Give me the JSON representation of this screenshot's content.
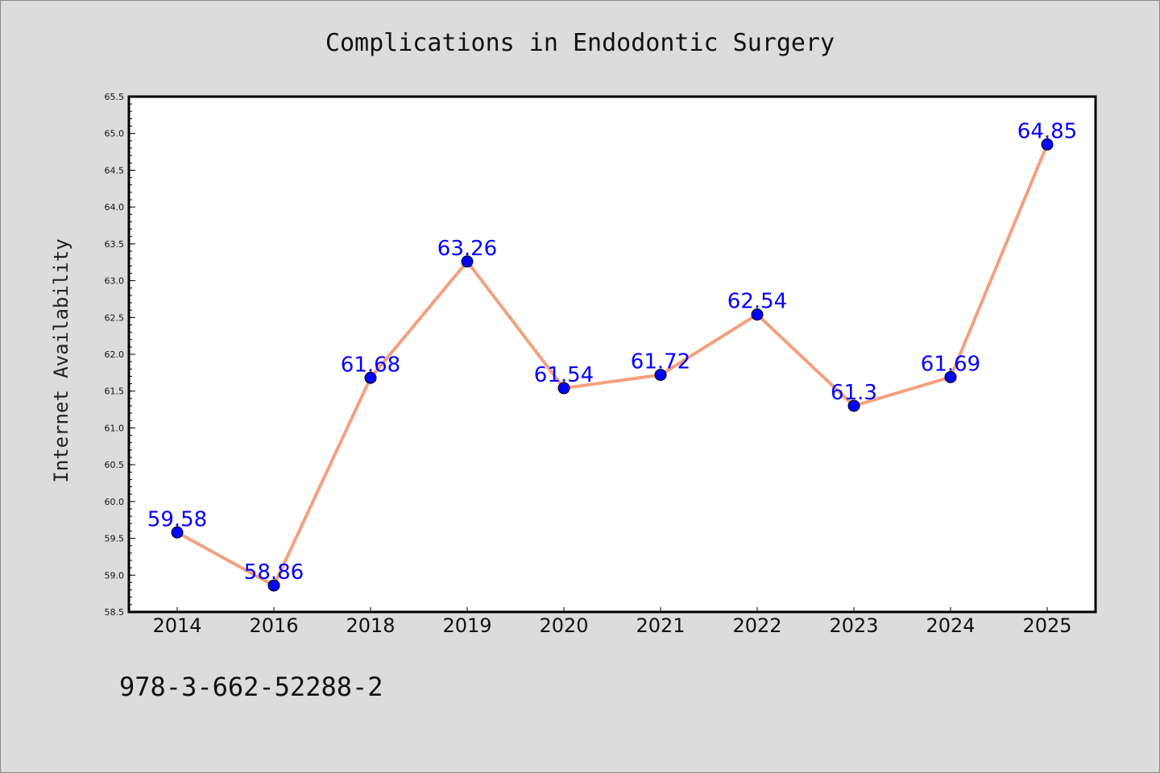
{
  "chart_data": {
    "type": "line",
    "title": "Complications in Endodontic Surgery",
    "xlabel": "",
    "ylabel": "Internet Availability",
    "categories": [
      "2014",
      "2016",
      "2018",
      "2019",
      "2020",
      "2021",
      "2022",
      "2023",
      "2024",
      "2025"
    ],
    "values": [
      59.58,
      58.86,
      61.68,
      63.26,
      61.54,
      61.72,
      62.54,
      61.3,
      61.69,
      64.85
    ],
    "data_labels": [
      "59.58",
      "58.86",
      "61.68",
      "63.26",
      "61.54",
      "61.72",
      "62.54",
      "61.3",
      "61.69",
      "64.85"
    ],
    "ylim": [
      58.5,
      65.5
    ],
    "yticks": [
      "58.5",
      "59.0",
      "59.5",
      "60.0",
      "60.5",
      "61.0",
      "61.5",
      "62.0",
      "62.5",
      "63.0",
      "63.5",
      "64.0",
      "64.5",
      "65.0",
      "65.5"
    ],
    "grid": false,
    "line_color": "#f4a07e",
    "marker_color": "#0000ff",
    "label_color": "#0000ff",
    "background_color": "#dcdcdc",
    "plot_background": "#ffffff"
  },
  "footer": {
    "isbn": "978-3-662-52288-2"
  }
}
